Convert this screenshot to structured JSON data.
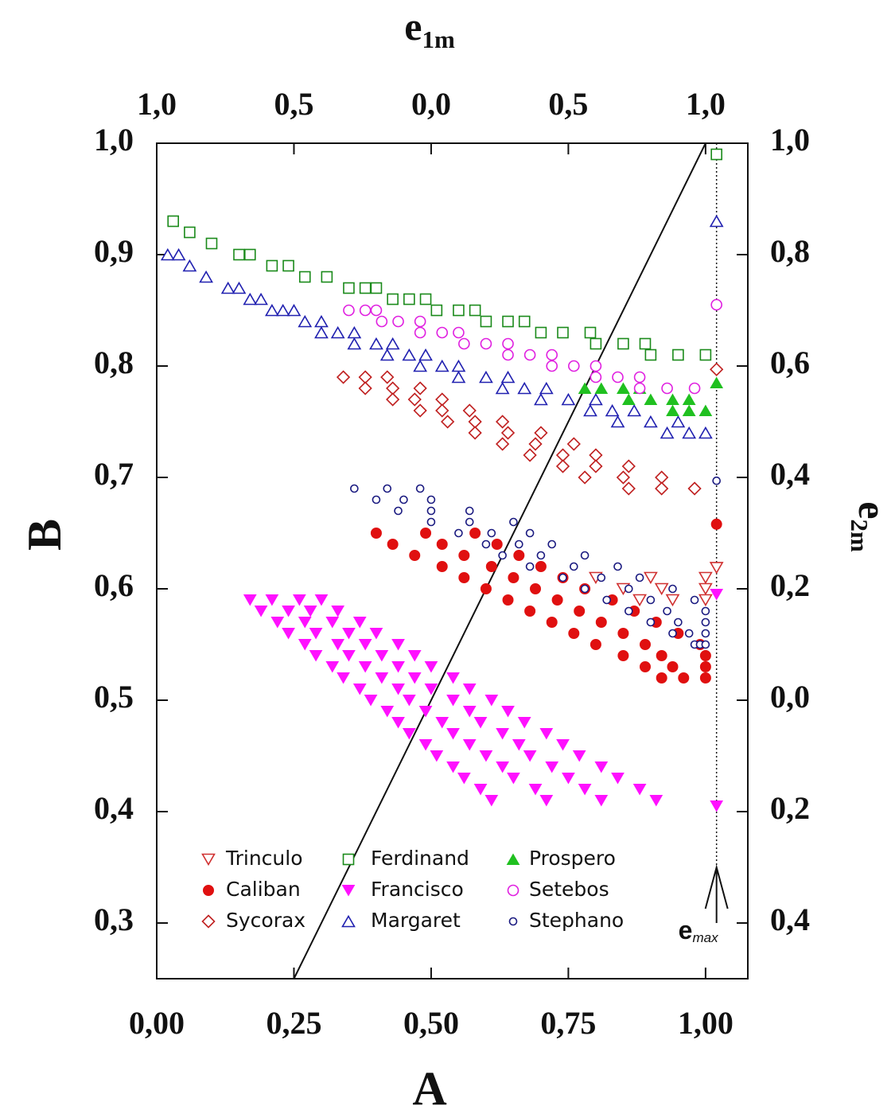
{
  "chart_data": {
    "type": "scatter",
    "xlabel": "A",
    "ylabel": "B",
    "x2label": {
      "text": "e",
      "sub": "1m"
    },
    "y2label": {
      "text": "e",
      "sub": "2m"
    },
    "xlim": [
      0,
      1.077
    ],
    "ylim": [
      0.25,
      1.0
    ],
    "x2lim": [
      -1,
      1.154
    ],
    "y2lim": [
      -0.5,
      1.0
    ],
    "xticks": [
      {
        "value": 0,
        "label": "0,00"
      },
      {
        "value": 0.25,
        "label": "0,25"
      },
      {
        "value": 0.5,
        "label": "0,50"
      },
      {
        "value": 0.75,
        "label": "0,75"
      },
      {
        "value": 1.0,
        "label": "1,00"
      }
    ],
    "yticks": [
      {
        "value": 0.3,
        "label": "0,3"
      },
      {
        "value": 0.4,
        "label": "0,4"
      },
      {
        "value": 0.5,
        "label": "0,5"
      },
      {
        "value": 0.6,
        "label": "0,6"
      },
      {
        "value": 0.7,
        "label": "0,7"
      },
      {
        "value": 0.8,
        "label": "0,8"
      },
      {
        "value": 0.9,
        "label": "0,9"
      },
      {
        "value": 1.0,
        "label": "1,0"
      }
    ],
    "x2ticks": [
      {
        "value": -1,
        "label": "1,0"
      },
      {
        "value": -0.5,
        "label": "0,5"
      },
      {
        "value": 0,
        "label": "0,0"
      },
      {
        "value": 0.5,
        "label": "0,5"
      },
      {
        "value": 1,
        "label": "1,0"
      }
    ],
    "y2ticks": [
      {
        "value": -0.4,
        "label": "0,4"
      },
      {
        "value": -0.2,
        "label": "0,2"
      },
      {
        "value": 0,
        "label": "0,0"
      },
      {
        "value": 0.2,
        "label": "0,2"
      },
      {
        "value": 0.4,
        "label": "0,4"
      },
      {
        "value": 0.6,
        "label": "0,6"
      },
      {
        "value": 0.8,
        "label": "0,8"
      },
      {
        "value": 1.0,
        "label": "1,0"
      }
    ],
    "diagonal": {
      "x": [
        0.25,
        1.0
      ],
      "values": [
        0.25,
        1.0
      ]
    },
    "annotation": {
      "text": "e",
      "sub": "max",
      "x": 1.02,
      "y": 0.35
    },
    "series": [
      {
        "name": "Trinculo",
        "color": "#d03030",
        "marker": "triangle-down-open",
        "x": [
          0.8,
          0.9,
          1.0,
          0.85,
          0.92,
          1.0,
          0.88,
          0.94,
          1.0,
          1.02
        ],
        "values": [
          0.61,
          0.61,
          0.61,
          0.6,
          0.6,
          0.6,
          0.59,
          0.59,
          0.59,
          0.619
        ]
      },
      {
        "name": "Caliban",
        "color": "#e01010",
        "marker": "circle-filled",
        "x": [
          0.4,
          0.49,
          0.58,
          0.43,
          0.52,
          0.62,
          0.47,
          0.56,
          0.66,
          0.52,
          0.61,
          0.7,
          0.56,
          0.65,
          0.74,
          0.6,
          0.69,
          0.78,
          0.64,
          0.73,
          0.83,
          0.68,
          0.77,
          0.87,
          0.72,
          0.81,
          0.91,
          0.76,
          0.85,
          0.95,
          0.8,
          0.89,
          0.99,
          0.85,
          0.92,
          1.0,
          0.89,
          0.94,
          1.0,
          0.92,
          0.96,
          1.0,
          1.02
        ],
        "values": [
          0.65,
          0.65,
          0.65,
          0.64,
          0.64,
          0.64,
          0.63,
          0.63,
          0.63,
          0.62,
          0.62,
          0.62,
          0.61,
          0.61,
          0.61,
          0.6,
          0.6,
          0.6,
          0.59,
          0.59,
          0.59,
          0.58,
          0.58,
          0.58,
          0.57,
          0.57,
          0.57,
          0.56,
          0.56,
          0.56,
          0.55,
          0.55,
          0.55,
          0.54,
          0.54,
          0.54,
          0.53,
          0.53,
          0.53,
          0.52,
          0.52,
          0.52,
          0.658
        ]
      },
      {
        "name": "Sycorax",
        "color": "#c02020",
        "marker": "diamond-open",
        "x": [
          0.34,
          0.38,
          0.42,
          0.38,
          0.43,
          0.48,
          0.43,
          0.47,
          0.52,
          0.48,
          0.52,
          0.57,
          0.53,
          0.58,
          0.63,
          0.58,
          0.64,
          0.7,
          0.63,
          0.69,
          0.76,
          0.68,
          0.74,
          0.8,
          0.74,
          0.8,
          0.86,
          0.78,
          0.85,
          0.92,
          0.86,
          0.92,
          0.98,
          1.02
        ],
        "values": [
          0.79,
          0.79,
          0.79,
          0.78,
          0.78,
          0.78,
          0.77,
          0.77,
          0.77,
          0.76,
          0.76,
          0.76,
          0.75,
          0.75,
          0.75,
          0.74,
          0.74,
          0.74,
          0.73,
          0.73,
          0.73,
          0.72,
          0.72,
          0.72,
          0.71,
          0.71,
          0.71,
          0.7,
          0.7,
          0.7,
          0.69,
          0.69,
          0.69,
          0.797
        ]
      },
      {
        "name": "Ferdinand",
        "color": "#1a8a1a",
        "marker": "square-open",
        "x": [
          0.03,
          0.06,
          0.1,
          0.15,
          0.17,
          0.21,
          0.24,
          0.27,
          0.31,
          0.35,
          0.38,
          0.4,
          0.43,
          0.46,
          0.49,
          0.51,
          0.55,
          0.58,
          0.6,
          0.64,
          0.67,
          0.7,
          0.74,
          0.79,
          0.8,
          0.85,
          0.89,
          0.9,
          0.95,
          1.0,
          1.02
        ],
        "values": [
          0.93,
          0.92,
          0.91,
          0.9,
          0.9,
          0.89,
          0.89,
          0.88,
          0.88,
          0.87,
          0.87,
          0.87,
          0.86,
          0.86,
          0.86,
          0.85,
          0.85,
          0.85,
          0.84,
          0.84,
          0.84,
          0.83,
          0.83,
          0.83,
          0.82,
          0.82,
          0.82,
          0.81,
          0.81,
          0.81,
          0.99
        ]
      },
      {
        "name": "Francisco",
        "color": "#ff10ff",
        "marker": "triangle-down-filled",
        "x": [
          0.17,
          0.21,
          0.26,
          0.3,
          0.19,
          0.24,
          0.28,
          0.33,
          0.22,
          0.27,
          0.32,
          0.37,
          0.24,
          0.29,
          0.35,
          0.4,
          0.27,
          0.33,
          0.38,
          0.44,
          0.29,
          0.35,
          0.41,
          0.47,
          0.32,
          0.38,
          0.44,
          0.5,
          0.34,
          0.41,
          0.47,
          0.54,
          0.37,
          0.44,
          0.5,
          0.57,
          0.39,
          0.46,
          0.54,
          0.61,
          0.42,
          0.49,
          0.57,
          0.64,
          0.44,
          0.52,
          0.59,
          0.67,
          0.46,
          0.54,
          0.63,
          0.71,
          0.49,
          0.57,
          0.66,
          0.74,
          0.51,
          0.6,
          0.68,
          0.77,
          0.54,
          0.63,
          0.72,
          0.81,
          0.56,
          0.65,
          0.75,
          0.84,
          0.59,
          0.69,
          0.78,
          0.88,
          0.61,
          0.71,
          0.81,
          0.91,
          1.02,
          1.02
        ],
        "values": [
          0.59,
          0.59,
          0.59,
          0.59,
          0.58,
          0.58,
          0.58,
          0.58,
          0.57,
          0.57,
          0.57,
          0.57,
          0.56,
          0.56,
          0.56,
          0.56,
          0.55,
          0.55,
          0.55,
          0.55,
          0.54,
          0.54,
          0.54,
          0.54,
          0.53,
          0.53,
          0.53,
          0.53,
          0.52,
          0.52,
          0.52,
          0.52,
          0.51,
          0.51,
          0.51,
          0.51,
          0.5,
          0.5,
          0.5,
          0.5,
          0.49,
          0.49,
          0.49,
          0.49,
          0.48,
          0.48,
          0.48,
          0.48,
          0.47,
          0.47,
          0.47,
          0.47,
          0.46,
          0.46,
          0.46,
          0.46,
          0.45,
          0.45,
          0.45,
          0.45,
          0.44,
          0.44,
          0.44,
          0.44,
          0.43,
          0.43,
          0.43,
          0.43,
          0.42,
          0.42,
          0.42,
          0.42,
          0.41,
          0.41,
          0.41,
          0.41,
          0.595,
          0.405
        ]
      },
      {
        "name": "Margaret",
        "color": "#2020b0",
        "marker": "triangle-up-open",
        "x": [
          0.02,
          0.04,
          0.06,
          0.09,
          0.13,
          0.15,
          0.17,
          0.19,
          0.21,
          0.23,
          0.25,
          0.27,
          0.3,
          0.3,
          0.33,
          0.36,
          0.36,
          0.4,
          0.43,
          0.42,
          0.46,
          0.49,
          0.48,
          0.52,
          0.55,
          0.55,
          0.6,
          0.64,
          0.63,
          0.67,
          0.71,
          0.7,
          0.75,
          0.8,
          0.79,
          0.83,
          0.87,
          0.84,
          0.9,
          0.95,
          0.93,
          0.97,
          1.0,
          1.02
        ],
        "values": [
          0.9,
          0.9,
          0.89,
          0.88,
          0.87,
          0.87,
          0.86,
          0.86,
          0.85,
          0.85,
          0.85,
          0.84,
          0.84,
          0.83,
          0.83,
          0.83,
          0.82,
          0.82,
          0.82,
          0.81,
          0.81,
          0.81,
          0.8,
          0.8,
          0.8,
          0.79,
          0.79,
          0.79,
          0.78,
          0.78,
          0.78,
          0.77,
          0.77,
          0.77,
          0.76,
          0.76,
          0.76,
          0.75,
          0.75,
          0.75,
          0.74,
          0.74,
          0.74,
          0.93
        ]
      },
      {
        "name": "Prospero",
        "color": "#20c020",
        "marker": "triangle-up-filled",
        "x": [
          0.78,
          0.81,
          0.85,
          0.88,
          0.86,
          0.9,
          0.94,
          0.97,
          0.94,
          0.97,
          1.0,
          1.02
        ],
        "values": [
          0.78,
          0.78,
          0.78,
          0.78,
          0.77,
          0.77,
          0.77,
          0.77,
          0.76,
          0.76,
          0.76,
          0.785
        ]
      },
      {
        "name": "Setebos",
        "color": "#e020e0",
        "marker": "circle-open",
        "x": [
          0.35,
          0.38,
          0.4,
          0.41,
          0.44,
          0.48,
          0.48,
          0.52,
          0.55,
          0.56,
          0.6,
          0.64,
          0.64,
          0.68,
          0.72,
          0.72,
          0.76,
          0.8,
          0.8,
          0.84,
          0.88,
          0.88,
          0.93,
          0.98,
          1.02
        ],
        "values": [
          0.85,
          0.85,
          0.85,
          0.84,
          0.84,
          0.84,
          0.83,
          0.83,
          0.83,
          0.82,
          0.82,
          0.82,
          0.81,
          0.81,
          0.81,
          0.8,
          0.8,
          0.8,
          0.79,
          0.79,
          0.79,
          0.78,
          0.78,
          0.78,
          0.855
        ]
      },
      {
        "name": "Stephano",
        "color": "#1a1a80",
        "marker": "circle-open-small",
        "x": [
          0.36,
          0.42,
          0.48,
          0.4,
          0.45,
          0.5,
          0.44,
          0.5,
          0.57,
          0.5,
          0.57,
          0.65,
          0.55,
          0.61,
          0.68,
          0.6,
          0.66,
          0.72,
          0.63,
          0.7,
          0.78,
          0.68,
          0.76,
          0.84,
          0.74,
          0.81,
          0.88,
          0.78,
          0.86,
          0.94,
          0.82,
          0.9,
          0.98,
          0.86,
          0.93,
          1.0,
          0.9,
          0.95,
          1.0,
          0.94,
          0.97,
          1.0,
          0.98,
          0.99,
          1.0,
          1.02
        ],
        "values": [
          0.69,
          0.69,
          0.69,
          0.68,
          0.68,
          0.68,
          0.67,
          0.67,
          0.67,
          0.66,
          0.66,
          0.66,
          0.65,
          0.65,
          0.65,
          0.64,
          0.64,
          0.64,
          0.63,
          0.63,
          0.63,
          0.62,
          0.62,
          0.62,
          0.61,
          0.61,
          0.61,
          0.6,
          0.6,
          0.6,
          0.59,
          0.59,
          0.59,
          0.58,
          0.58,
          0.58,
          0.57,
          0.57,
          0.57,
          0.56,
          0.56,
          0.56,
          0.55,
          0.55,
          0.55,
          0.697
        ]
      }
    ]
  }
}
